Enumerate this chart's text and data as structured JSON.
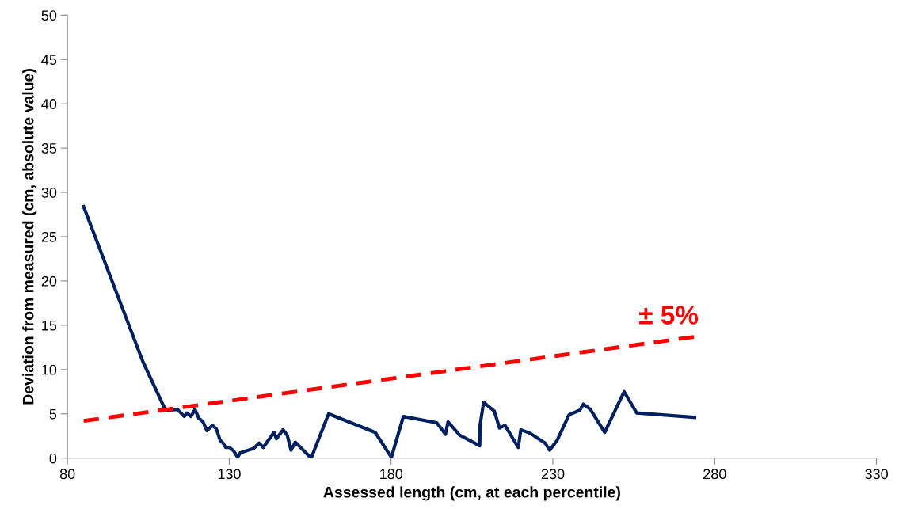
{
  "chart_data": {
    "type": "line",
    "xlabel": "Assessed length (cm, at each percentile)",
    "ylabel": "Deviation from measured (cm, absolute value)",
    "xlim": [
      80,
      330
    ],
    "xticks": [
      80,
      130,
      180,
      230,
      280,
      330
    ],
    "ylim": [
      0,
      50
    ],
    "yticks": [
      0,
      5,
      10,
      15,
      20,
      25,
      30,
      35,
      40,
      45,
      50
    ],
    "grid": false,
    "marker": "none",
    "series": [
      {
        "color": "#002060",
        "line_style": "solid",
        "x": [
          85,
          103.3,
          110.2,
          111.1,
          114.0,
          116.1,
          116.9,
          118.2,
          119.4,
          120.6,
          121.9,
          123.1,
          124.8,
          126.0,
          127.2,
          128.1,
          128.9,
          130.1,
          131.4,
          132.6,
          133.4,
          137.6,
          139.2,
          140.5,
          143.8,
          144.6,
          146.6,
          147.9,
          149.1,
          150.4,
          155.3,
          160.7,
          175.1,
          180.1,
          183.8,
          194.1,
          196.8,
          197.6,
          201.2,
          207.4,
          207.5,
          208.6,
          211.9,
          213.5,
          215.2,
          219.3,
          220.1,
          223.0,
          227.6,
          229.0,
          231.3,
          235.0,
          238.3,
          239.4,
          241.6,
          246.0,
          252.0,
          255.9,
          273.8
        ],
        "values": [
          28.4,
          10.9,
          5.5,
          5.4,
          5.5,
          4.7,
          5.1,
          4.7,
          5.5,
          4.5,
          4.1,
          3.1,
          3.7,
          3.3,
          2.0,
          1.7,
          1.2,
          1.2,
          0.8,
          0.1,
          0.6,
          1.1,
          1.7,
          1.2,
          2.9,
          2.2,
          3.2,
          2.6,
          0.9,
          1.8,
          0.0,
          5.0,
          2.9,
          0.1,
          4.7,
          4.0,
          2.7,
          4.1,
          2.6,
          1.4,
          3.7,
          6.3,
          5.3,
          3.4,
          3.7,
          1.2,
          3.2,
          2.8,
          1.7,
          0.9,
          2.0,
          4.9,
          5.4,
          6.1,
          5.5,
          2.9,
          7.5,
          5.1,
          4.6
        ]
      },
      {
        "color": "#ff0000",
        "line_style": "dashed",
        "x": [
          85,
          273.8
        ],
        "values": [
          4.2,
          13.7
        ]
      }
    ],
    "annotations": [
      "± 5%"
    ]
  }
}
